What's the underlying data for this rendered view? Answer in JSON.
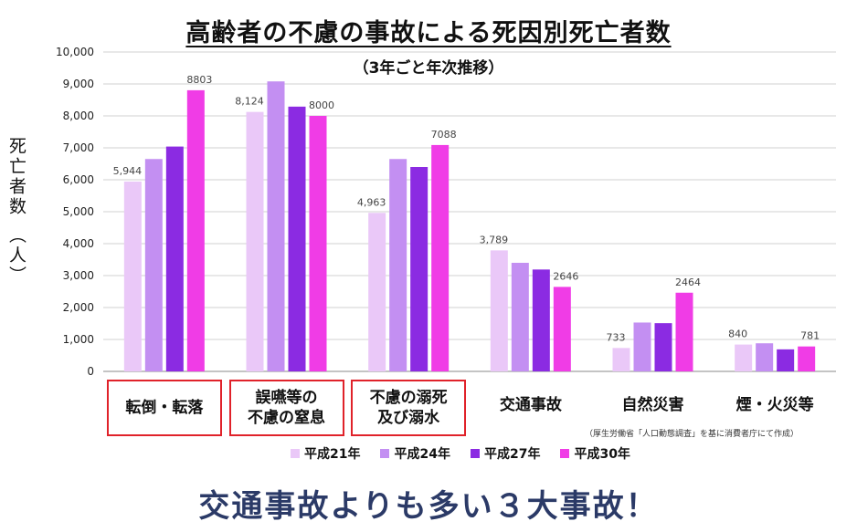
{
  "chart_data": {
    "type": "bar",
    "title": "高齢者の不慮の事故による死因別死亡者数",
    "subtitle": "（3年ごと年次推移）",
    "ylabel": "死亡者数 （人）",
    "ylim": [
      0,
      10000
    ],
    "yticks": [
      "0",
      "1,000",
      "2,000",
      "3,000",
      "4,000",
      "5,000",
      "6,000",
      "7,000",
      "8,000",
      "9,000",
      "10,000"
    ],
    "grid": true,
    "legend_position": "bottom",
    "categories": [
      "転倒・転落",
      "誤嚥等の\n不慮の窒息",
      "不慮の溺死\n及び溺水",
      "交通事故",
      "自然災害",
      "煙・火災等"
    ],
    "highlighted": [
      true,
      true,
      true,
      false,
      false,
      false
    ],
    "series": [
      {
        "name": "平成21年",
        "color": "#eac8f8",
        "values": [
          5944,
          8124,
          4963,
          3789,
          733,
          840
        ]
      },
      {
        "name": "平成24年",
        "color": "#c38ff2",
        "values": [
          6650,
          9080,
          6650,
          3400,
          1530,
          880
        ]
      },
      {
        "name": "平成27年",
        "color": "#8b2be2",
        "values": [
          7040,
          8290,
          6400,
          3190,
          1510,
          690
        ]
      },
      {
        "name": "平成30年",
        "color": "#f03ce6",
        "values": [
          8803,
          8000,
          7088,
          2646,
          2464,
          781
        ]
      }
    ],
    "data_labels": [
      {
        "category": 0,
        "series": 0,
        "text": "5,944"
      },
      {
        "category": 0,
        "series": 3,
        "text": "8803"
      },
      {
        "category": 1,
        "series": 0,
        "text": "8,124"
      },
      {
        "category": 1,
        "series": 3,
        "text": "8000"
      },
      {
        "category": 2,
        "series": 0,
        "text": "4,963"
      },
      {
        "category": 2,
        "series": 3,
        "text": "7088"
      },
      {
        "category": 3,
        "series": 0,
        "text": "3,789"
      },
      {
        "category": 3,
        "series": 3,
        "text": "2646"
      },
      {
        "category": 4,
        "series": 0,
        "text": "733"
      },
      {
        "category": 4,
        "series": 3,
        "text": "2464"
      },
      {
        "category": 5,
        "series": 0,
        "text": "840"
      },
      {
        "category": 5,
        "series": 3,
        "text": "781"
      }
    ],
    "source": "（厚生労働省「人口動態調査」を基に消費者庁にて作成）"
  },
  "banner": "交通事故よりも多い３大事故！",
  "colors": {
    "highlight_border": "#e0222a",
    "banner_text": "#2b3a67"
  }
}
